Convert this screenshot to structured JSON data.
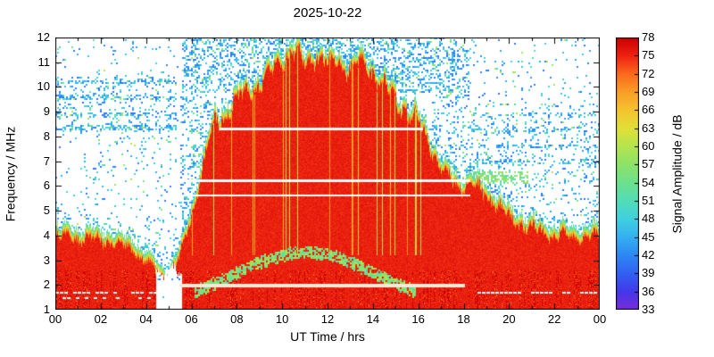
{
  "chart_data": {
    "type": "heatmap",
    "subtype": "spectrogram",
    "title": "2025-10-22",
    "xlabel": "UT Time / hrs",
    "ylabel": "Frequency / MHz",
    "colorbar_label": "Signal Amplitude / dB",
    "x_range_hours": [
      0,
      24
    ],
    "x_tick_labels": [
      "00",
      "02",
      "04",
      "06",
      "08",
      "10",
      "12",
      "14",
      "16",
      "18",
      "20",
      "22",
      "00"
    ],
    "y_range_mhz": [
      1,
      12
    ],
    "y_tick_values": [
      1,
      2,
      3,
      4,
      5,
      6,
      7,
      8,
      9,
      10,
      11,
      12
    ],
    "colorbar_range_db": [
      33,
      78
    ],
    "colorbar_tick_values": [
      78,
      75,
      72,
      69,
      66,
      63,
      60,
      57,
      54,
      51,
      48,
      45,
      42,
      39,
      36,
      33
    ],
    "background_color": "#ffffff",
    "colormap_stops": [
      [
        33,
        "#7b2bd9"
      ],
      [
        36,
        "#4538ea"
      ],
      [
        39,
        "#3160f2"
      ],
      [
        42,
        "#2e86f3"
      ],
      [
        45,
        "#33aff0"
      ],
      [
        48,
        "#3fd0e0"
      ],
      [
        51,
        "#52dcb8"
      ],
      [
        54,
        "#6ce08d"
      ],
      [
        57,
        "#8ce26a"
      ],
      [
        60,
        "#b4e44e"
      ],
      [
        63,
        "#e0e038"
      ],
      [
        66,
        "#f4c52e"
      ],
      [
        69,
        "#f99e26"
      ],
      [
        72,
        "#fb6a1c"
      ],
      [
        75,
        "#ee2211"
      ],
      [
        78,
        "#cc0000"
      ]
    ],
    "amplitude_model_db": {
      "red_core": 75.3,
      "fringe_min": 48,
      "speckle_min": 40,
      "speckle_max": 50,
      "green_min": 51,
      "green_max": 61
    },
    "envelope_mhz_by_hour": [
      [
        0,
        4.35
      ],
      [
        1,
        4.3
      ],
      [
        2,
        4.25
      ],
      [
        3,
        4.0
      ],
      [
        3.5,
        3.8
      ],
      [
        4,
        3.3
      ],
      [
        4.5,
        2.9
      ],
      [
        5,
        2.7
      ],
      [
        5.5,
        3.6
      ],
      [
        6,
        5.2
      ],
      [
        6.5,
        7.2
      ],
      [
        7,
        8.8
      ],
      [
        7.5,
        9.4
      ],
      [
        8,
        9.9
      ],
      [
        8.5,
        10.2
      ],
      [
        9,
        10.5
      ],
      [
        9.5,
        11.0
      ],
      [
        10,
        11.6
      ],
      [
        10.5,
        11.8
      ],
      [
        11,
        11.4
      ],
      [
        11.5,
        11.7
      ],
      [
        12,
        11.2
      ],
      [
        12.5,
        11.5
      ],
      [
        13,
        11.1
      ],
      [
        13.5,
        11.3
      ],
      [
        14,
        11.0
      ],
      [
        14.5,
        10.4
      ],
      [
        15,
        9.9
      ],
      [
        15.5,
        9.4
      ],
      [
        16,
        8.9
      ],
      [
        16.5,
        8.1
      ],
      [
        17,
        7.1
      ],
      [
        17.5,
        6.6
      ],
      [
        18,
        6.4
      ],
      [
        18.5,
        6.3
      ],
      [
        19,
        6.1
      ],
      [
        19.5,
        5.6
      ],
      [
        20,
        5.1
      ],
      [
        20.5,
        4.9
      ],
      [
        21,
        4.7
      ],
      [
        21.5,
        4.5
      ],
      [
        22,
        4.4
      ],
      [
        23,
        4.35
      ],
      [
        24,
        4.35
      ]
    ],
    "dawn_gap": {
      "t1": 4.45,
      "t2": 5.6,
      "f_max": 2.55
    },
    "arch": {
      "t1": 6.1,
      "t2": 15.9,
      "center": 11,
      "base_mhz": 1.75,
      "peak_mhz": 3.3
    },
    "interference_gap_lines": [
      {
        "f": 8.35,
        "t1": 7.25,
        "t2": 16.2,
        "thickness_mhz": 0.1,
        "color": "#ffffff",
        "dashed": false
      },
      {
        "f": 6.27,
        "t1": 5.75,
        "t2": 18.3,
        "thickness_mhz": 0.11,
        "color": "#ffffff",
        "dashed": false
      },
      {
        "f": 5.67,
        "t1": 5.75,
        "t2": 18.3,
        "thickness_mhz": 0.09,
        "color": "#ffffff",
        "dashed": false
      },
      {
        "f": 2.05,
        "t1": 5.45,
        "t2": 18.05,
        "thickness_mhz": 0.13,
        "color": "#f2ead8",
        "dashed": false
      },
      {
        "f": 1.73,
        "t1": 0.0,
        "t2": 4.5,
        "thickness_mhz": 0.07,
        "color": "#ffffff",
        "dashed": true
      },
      {
        "f": 1.5,
        "t1": 0.3,
        "t2": 4.2,
        "thickness_mhz": 0.06,
        "color": "#ffffff",
        "dashed": true
      },
      {
        "f": 1.73,
        "t1": 18.6,
        "t2": 23.8,
        "thickness_mhz": 0.06,
        "color": "#ffffff",
        "dashed": true
      }
    ],
    "noise_patches": [
      {
        "t1": 5.55,
        "t2": 18.2,
        "f1": 9.75,
        "f2": 12.0,
        "p": 0.32
      },
      {
        "t1": 0.0,
        "t2": 5.3,
        "f1": 8.15,
        "f2": 10.4,
        "p": 0.16
      },
      {
        "t1": 0.0,
        "t2": 5.3,
        "f1": 10.4,
        "f2": 12.0,
        "p": 0.05
      },
      {
        "t1": 18.2,
        "t2": 24.0,
        "f1": 5.3,
        "f2": 9.3,
        "p": 0.12
      },
      {
        "t1": 18.2,
        "t2": 24.0,
        "f1": 9.3,
        "f2": 12.0,
        "p": 0.04
      },
      {
        "t1": 5.5,
        "t2": 6.9,
        "f1": 4.0,
        "f2": 9.75,
        "p": 0.22
      },
      {
        "t1": 16.6,
        "t2": 18.2,
        "f1": 6.5,
        "f2": 9.75,
        "p": 0.18
      },
      {
        "t1": 0.0,
        "t2": 5.3,
        "f1": 4.6,
        "f2": 8.15,
        "p": 0.05
      },
      {
        "t1": 3.8,
        "t2": 6.0,
        "f1": 2.2,
        "f2": 4.8,
        "p": 0.1
      },
      {
        "t1": 18.2,
        "t2": 20.8,
        "f1": 6.1,
        "f2": 6.6,
        "p": 0.45,
        "green": true
      },
      {
        "t1": 20.5,
        "t2": 24.0,
        "f1": 4.8,
        "f2": 5.6,
        "p": 0.1
      }
    ],
    "left_noise_rows": [
      8.35,
      8.9,
      9.6,
      10.2
    ],
    "right_noise_rows": [
      7.0,
      7.6,
      8.3,
      8.9
    ]
  }
}
